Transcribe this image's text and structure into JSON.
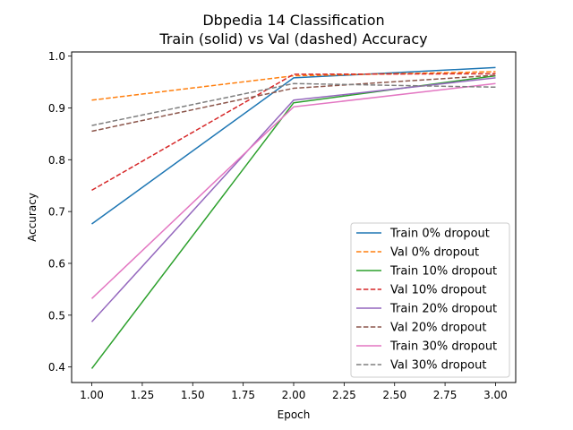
{
  "chart_data": {
    "type": "line",
    "title": "Dbpedia 14 Classification",
    "subtitle": "Train (solid) vs Val (dashed) Accuracy",
    "xlabel": "Epoch",
    "ylabel": "Accuracy",
    "xlim": [
      0.9,
      3.1
    ],
    "ylim": [
      0.37,
      1.008
    ],
    "grid": false,
    "legend_position": "lower-right",
    "x": [
      1,
      2,
      3
    ],
    "x_ticks": [
      "1.00",
      "1.25",
      "1.50",
      "1.75",
      "2.00",
      "2.25",
      "2.50",
      "2.75",
      "3.00"
    ],
    "x_tick_values": [
      1,
      1.25,
      1.5,
      1.75,
      2,
      2.25,
      2.5,
      2.75,
      3
    ],
    "y_ticks": [
      "0.4",
      "0.5",
      "0.6",
      "0.7",
      "0.8",
      "0.9",
      "1.0"
    ],
    "y_tick_values": [
      0.4,
      0.5,
      0.6,
      0.7,
      0.8,
      0.9,
      1.0
    ],
    "series": [
      {
        "name": "Train 0% dropout",
        "values": [
          0.676,
          0.958,
          0.978
        ],
        "color": "#1f77b4",
        "dash": false
      },
      {
        "name": "Val 0% dropout",
        "values": [
          0.915,
          0.962,
          0.97
        ],
        "color": "#ff7f0e",
        "dash": true
      },
      {
        "name": "Train 10% dropout",
        "values": [
          0.397,
          0.91,
          0.962
        ],
        "color": "#2ca02c",
        "dash": false
      },
      {
        "name": "Val 10% dropout",
        "values": [
          0.741,
          0.965,
          0.966
        ],
        "color": "#d62728",
        "dash": true
      },
      {
        "name": "Train 20% dropout",
        "values": [
          0.487,
          0.915,
          0.958
        ],
        "color": "#9467bd",
        "dash": false
      },
      {
        "name": "Val 20% dropout",
        "values": [
          0.855,
          0.938,
          0.963
        ],
        "color": "#8c564b",
        "dash": true
      },
      {
        "name": "Train 30% dropout",
        "values": [
          0.532,
          0.902,
          0.947
        ],
        "color": "#e377c2",
        "dash": false
      },
      {
        "name": "Val 30% dropout",
        "values": [
          0.866,
          0.947,
          0.94
        ],
        "color": "#7f7f7f",
        "dash": true
      }
    ]
  }
}
